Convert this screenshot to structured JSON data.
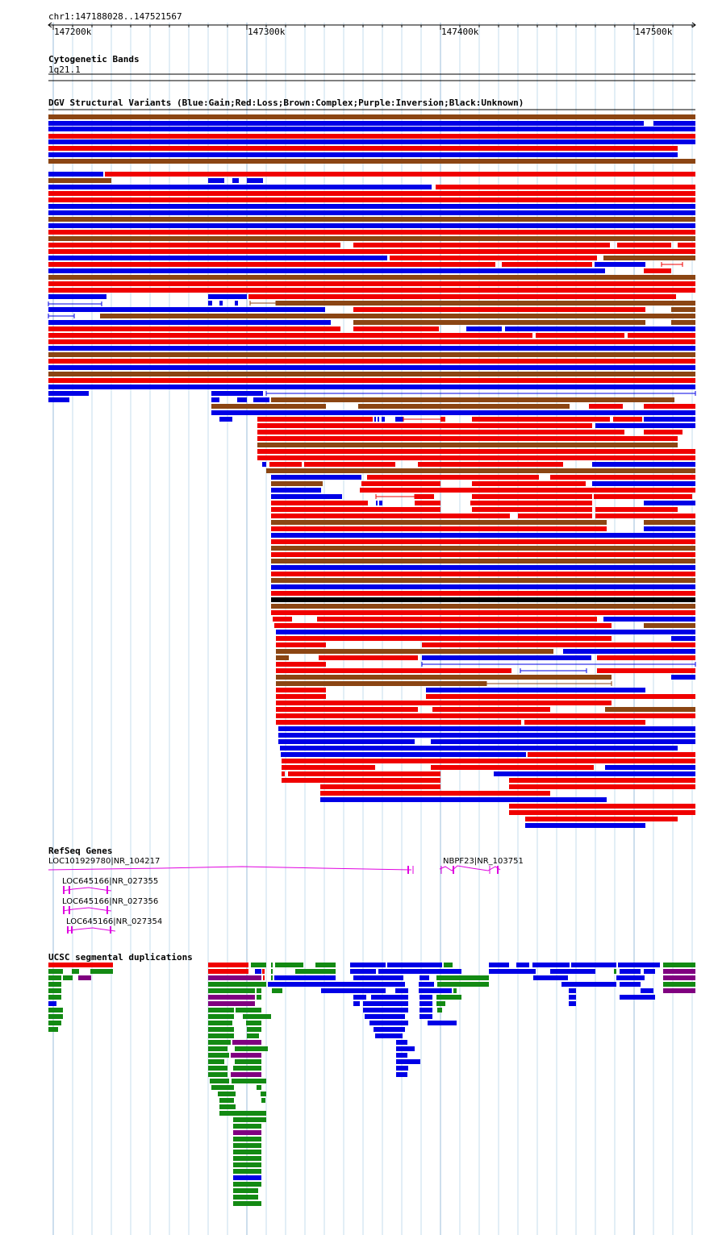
{
  "ruler": {
    "location": "chr1:147188028..147521567",
    "ticks": [
      "147200k",
      "147300k",
      "147400k",
      "147500k"
    ]
  },
  "cyto": {
    "title": "Cytogenetic Bands",
    "band": "1q21.1"
  },
  "dgv": {
    "title": "DGV Structural Variants (Blue:Gain;Red:Loss;Brown:Complex;Purple:Inversion;Black:Unknown)",
    "legend_colors": {
      "gain": "#0000e6",
      "loss": "#f00000",
      "complex": "#8b4513",
      "inversion": "#800080",
      "unknown": "#000000"
    }
  },
  "refseq": {
    "title": "RefSeq Genes",
    "genes": [
      "LOC101929780|NR_104217",
      "NBPF23|NR_103751",
      "LOC645166|NR_027355",
      "LOC645166|NR_027356",
      "LOC645166|NR_027354"
    ],
    "gene_color": "#e000e0"
  },
  "segdup": {
    "title": "UCSC segmental duplications",
    "colors": {
      "red": "#f00000",
      "green": "#138a13",
      "purple": "#800080",
      "blue": "#0000e6"
    }
  }
}
